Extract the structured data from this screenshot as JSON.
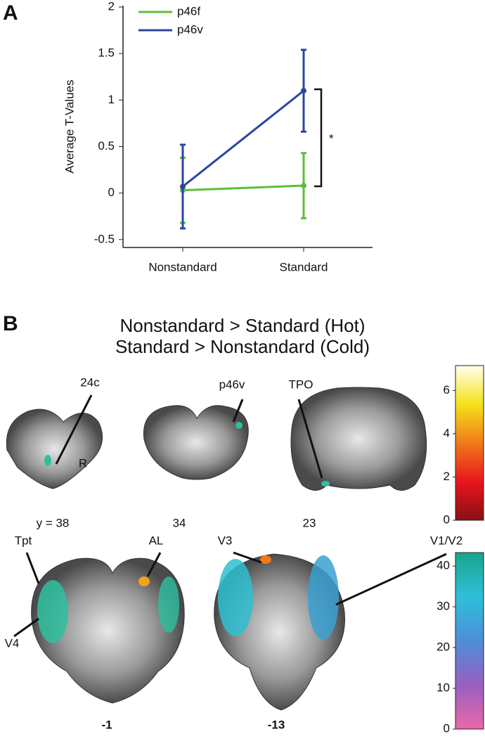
{
  "panel_labels": [
    "A",
    "B"
  ],
  "chart_data": {
    "type": "line",
    "y_label": "Average T-Values",
    "categories": [
      "Nonstandard",
      "Standard"
    ],
    "series": [
      {
        "name": "p46f",
        "color": "#5cbf3a",
        "values": [
          0.03,
          0.08
        ],
        "errors": [
          0.35,
          0.35
        ]
      },
      {
        "name": "p46v",
        "color": "#2a46a0",
        "values": [
          0.07,
          1.1
        ],
        "errors": [
          0.45,
          0.44
        ]
      }
    ],
    "ylim": [
      -0.6,
      2
    ],
    "yticks": [
      -0.5,
      0,
      0.5,
      1,
      1.5,
      2
    ],
    "annotation": "*",
    "legend": "upper left"
  },
  "panel_b": {
    "title": [
      "Nonstandard > Standard (Hot)",
      "Standard > Nonstandard (Cold)"
    ],
    "labels": [
      "24c",
      "p46v",
      "TPO",
      "R",
      "Tpt",
      "AL",
      "V3",
      "V1/V2",
      "V4"
    ],
    "slices": [
      "y = 38",
      "34",
      "23",
      "-1",
      "-13"
    ],
    "colorbars": [
      {
        "lim": [
          0,
          7.15
        ],
        "ticks": [
          0,
          2,
          4,
          6
        ],
        "colors": [
          "#8a0f16",
          "#e8161c",
          "#f07a1a",
          "#f4e21a",
          "#fffff0"
        ]
      },
      {
        "lim": [
          0,
          43.3
        ],
        "ticks": [
          0,
          10,
          20,
          30,
          40
        ],
        "colors": [
          "#e869a8",
          "#9a5fc0",
          "#4d8ed8",
          "#2ebfd9",
          "#1aa58c"
        ]
      }
    ]
  }
}
